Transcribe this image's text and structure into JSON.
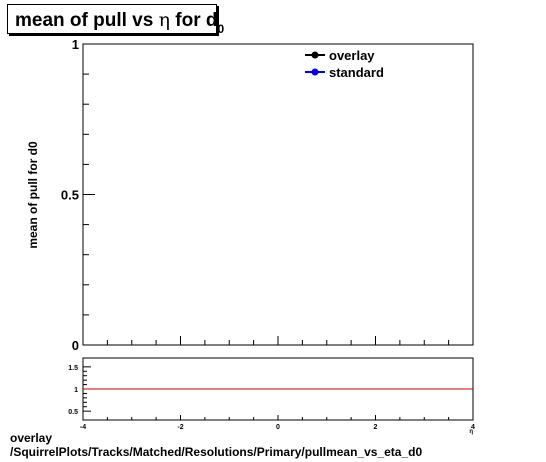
{
  "title": {
    "prefix": "mean of pull vs ",
    "symbol": "η",
    "middle": " for d",
    "subscript": "0"
  },
  "footer": {
    "line1": "overlay",
    "line2": "/SquirrelPlots/Tracks/Matched/Resolutions/Primary/pullmean_vs_eta_d0"
  },
  "colors": {
    "overlay": "#000000",
    "standard": "#0000ff",
    "ratio_line": "#cc0000"
  },
  "chart_data": [
    {
      "type": "line",
      "ylabel": "mean of pull for d0",
      "xlim": [
        -4,
        4
      ],
      "ylim": [
        0,
        1
      ],
      "y_ticks": [
        "0",
        "0.5",
        "1"
      ],
      "legend_position": "top-right",
      "series": [
        {
          "name": "overlay",
          "x": [],
          "y": []
        },
        {
          "name": "standard",
          "x": [],
          "y": []
        }
      ]
    },
    {
      "type": "line",
      "xlim": [
        -4,
        4
      ],
      "ylim": [
        0.3,
        1.7
      ],
      "x_ticks": [
        "-4",
        "-2",
        "0",
        "2",
        "4"
      ],
      "y_ticks": [
        "0.5",
        "1",
        "1.5"
      ],
      "xlabel": "η",
      "reference_line": 1
    }
  ]
}
